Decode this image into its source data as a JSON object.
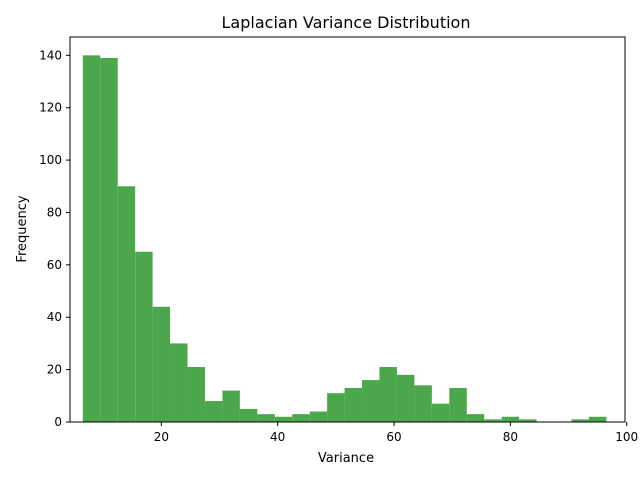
{
  "chart_data": {
    "type": "bar",
    "title": "Laplacian Variance Distribution",
    "xlabel": "Variance",
    "ylabel": "Frequency",
    "bar_color": "#4ca64c",
    "bin_width": 3,
    "xlim": [
      4.3,
      99.7
    ],
    "ylim": [
      0,
      147
    ],
    "xticks": [
      20,
      40,
      60,
      80,
      100
    ],
    "yticks": [
      0,
      20,
      40,
      60,
      80,
      100,
      120,
      140
    ],
    "bins": [
      {
        "x0": 6.5,
        "x1": 9.5,
        "count": 140
      },
      {
        "x0": 9.5,
        "x1": 12.5,
        "count": 139
      },
      {
        "x0": 12.5,
        "x1": 15.5,
        "count": 90
      },
      {
        "x0": 15.5,
        "x1": 18.5,
        "count": 65
      },
      {
        "x0": 18.5,
        "x1": 21.5,
        "count": 44
      },
      {
        "x0": 21.5,
        "x1": 24.5,
        "count": 30
      },
      {
        "x0": 24.5,
        "x1": 27.5,
        "count": 21
      },
      {
        "x0": 27.5,
        "x1": 30.5,
        "count": 8
      },
      {
        "x0": 30.5,
        "x1": 33.5,
        "count": 12
      },
      {
        "x0": 33.5,
        "x1": 36.5,
        "count": 5
      },
      {
        "x0": 36.5,
        "x1": 39.5,
        "count": 3
      },
      {
        "x0": 39.5,
        "x1": 42.5,
        "count": 2
      },
      {
        "x0": 42.5,
        "x1": 45.5,
        "count": 3
      },
      {
        "x0": 45.5,
        "x1": 48.5,
        "count": 4
      },
      {
        "x0": 48.5,
        "x1": 51.5,
        "count": 11
      },
      {
        "x0": 51.5,
        "x1": 54.5,
        "count": 13
      },
      {
        "x0": 54.5,
        "x1": 57.5,
        "count": 16
      },
      {
        "x0": 57.5,
        "x1": 60.5,
        "count": 21
      },
      {
        "x0": 60.5,
        "x1": 63.5,
        "count": 18
      },
      {
        "x0": 63.5,
        "x1": 66.5,
        "count": 14
      },
      {
        "x0": 66.5,
        "x1": 69.5,
        "count": 7
      },
      {
        "x0": 69.5,
        "x1": 72.5,
        "count": 13
      },
      {
        "x0": 72.5,
        "x1": 75.5,
        "count": 3
      },
      {
        "x0": 75.5,
        "x1": 78.5,
        "count": 1
      },
      {
        "x0": 78.5,
        "x1": 81.5,
        "count": 2
      },
      {
        "x0": 81.5,
        "x1": 84.5,
        "count": 1
      },
      {
        "x0": 84.5,
        "x1": 87.5,
        "count": 0
      },
      {
        "x0": 87.5,
        "x1": 90.5,
        "count": 0
      },
      {
        "x0": 90.5,
        "x1": 93.5,
        "count": 1
      },
      {
        "x0": 93.5,
        "x1": 96.5,
        "count": 2
      }
    ],
    "grid": false,
    "legend": "none"
  }
}
